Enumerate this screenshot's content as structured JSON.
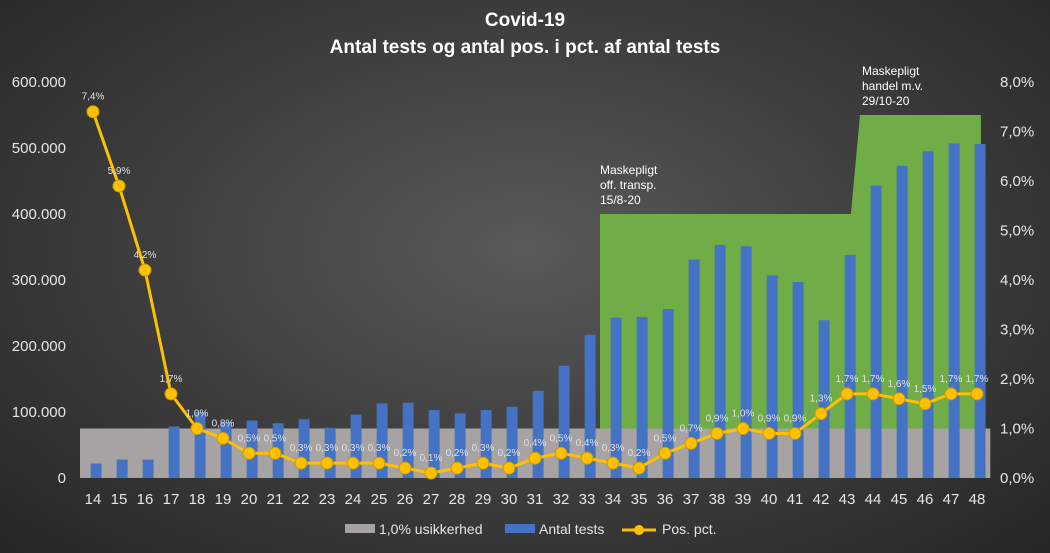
{
  "chart_data": {
    "type": "bar",
    "title": "Covid-19",
    "subtitle": "Antal tests og antal pos. i pct. af antal tests",
    "categories": [
      "14",
      "15",
      "16",
      "17",
      "18",
      "19",
      "20",
      "21",
      "22",
      "23",
      "24",
      "25",
      "26",
      "27",
      "28",
      "29",
      "30",
      "31",
      "32",
      "33",
      "34",
      "35",
      "36",
      "37",
      "38",
      "39",
      "40",
      "41",
      "42",
      "43",
      "44",
      "45",
      "46",
      "47",
      "48"
    ],
    "series": [
      {
        "name": "1,0% usikkerhed",
        "kind": "bar",
        "axis": "left",
        "color": "#a7a3a3",
        "values": [
          75000,
          75000,
          75000,
          75000,
          75000,
          75000,
          75000,
          75000,
          75000,
          75000,
          75000,
          75000,
          75000,
          75000,
          75000,
          75000,
          75000,
          75000,
          75000,
          75000,
          75000,
          75000,
          75000,
          75000,
          75000,
          75000,
          75000,
          75000,
          75000,
          75000,
          75000,
          75000,
          75000,
          75000,
          75000
        ]
      },
      {
        "name": "Antal tests",
        "kind": "bar",
        "axis": "left",
        "color": "#4472c4",
        "values": [
          22000,
          28000,
          28000,
          78000,
          100000,
          85000,
          87000,
          83000,
          89000,
          76000,
          96000,
          113000,
          114000,
          103000,
          98000,
          103000,
          108000,
          132000,
          170000,
          217000,
          243000,
          244000,
          256000,
          331000,
          353000,
          351000,
          307000,
          297000,
          239000,
          338000,
          443000,
          473000,
          495000,
          507000,
          506000
        ]
      },
      {
        "name": "Pos. pct.",
        "kind": "line",
        "axis": "right",
        "color": "#ffc000",
        "values": [
          7.4,
          5.9,
          4.2,
          1.7,
          1.0,
          0.8,
          0.5,
          0.5,
          0.3,
          0.3,
          0.3,
          0.3,
          0.2,
          0.1,
          0.2,
          0.3,
          0.2,
          0.4,
          0.5,
          0.4,
          0.3,
          0.2,
          0.5,
          0.7,
          0.9,
          1.0,
          0.9,
          0.9,
          1.3,
          1.7,
          1.7,
          1.6,
          1.5,
          1.7,
          1.7
        ],
        "labels": [
          "7,4%",
          "5,9%",
          "4,2%",
          "1,7%",
          "1,0%",
          "0,8%",
          "0,5%",
          "0,5%",
          "0,3%",
          "0,3%",
          "0,3%",
          "0,3%",
          "0,2%",
          "0,1%",
          "0,2%",
          "0,3%",
          "0,2%",
          "0,4%",
          "0,5%",
          "0,4%",
          "0,3%",
          "0,2%",
          "0,5%",
          "0,7%",
          "0,9%",
          "1,0%",
          "0,9%",
          "0,9%",
          "1,3%",
          "1,7%",
          "1,7%",
          "1,6%",
          "1,5%",
          "1,7%",
          "1,7%"
        ]
      }
    ],
    "left_axis": {
      "ylim": [
        0,
        600000
      ],
      "ticks": [
        "0",
        "100.000",
        "200.000",
        "300.000",
        "400.000",
        "500.000",
        "600.000"
      ]
    },
    "right_axis": {
      "ylim": [
        0,
        8
      ],
      "ticks": [
        "0,0%",
        "1,0%",
        "2,0%",
        "3,0%",
        "4,0%",
        "5,0%",
        "6,0%",
        "7,0%",
        "8,0%"
      ]
    },
    "shaded_regions": [
      {
        "from": "34",
        "to": "48",
        "color": "#70ad47",
        "level_steps": [
          {
            "from": "34",
            "to": "43",
            "value": 400000
          },
          {
            "from": "44",
            "to": "48",
            "value": 550000
          }
        ]
      }
    ],
    "annotations": [
      {
        "lines": [
          "Maskepligt",
          "off. transp.",
          "15/8-20"
        ],
        "at": "34"
      },
      {
        "lines": [
          "Maskepligt",
          "handel m.v.",
          "29/10-20"
        ],
        "at": "44"
      }
    ],
    "grid": false,
    "legend_position": "bottom"
  }
}
